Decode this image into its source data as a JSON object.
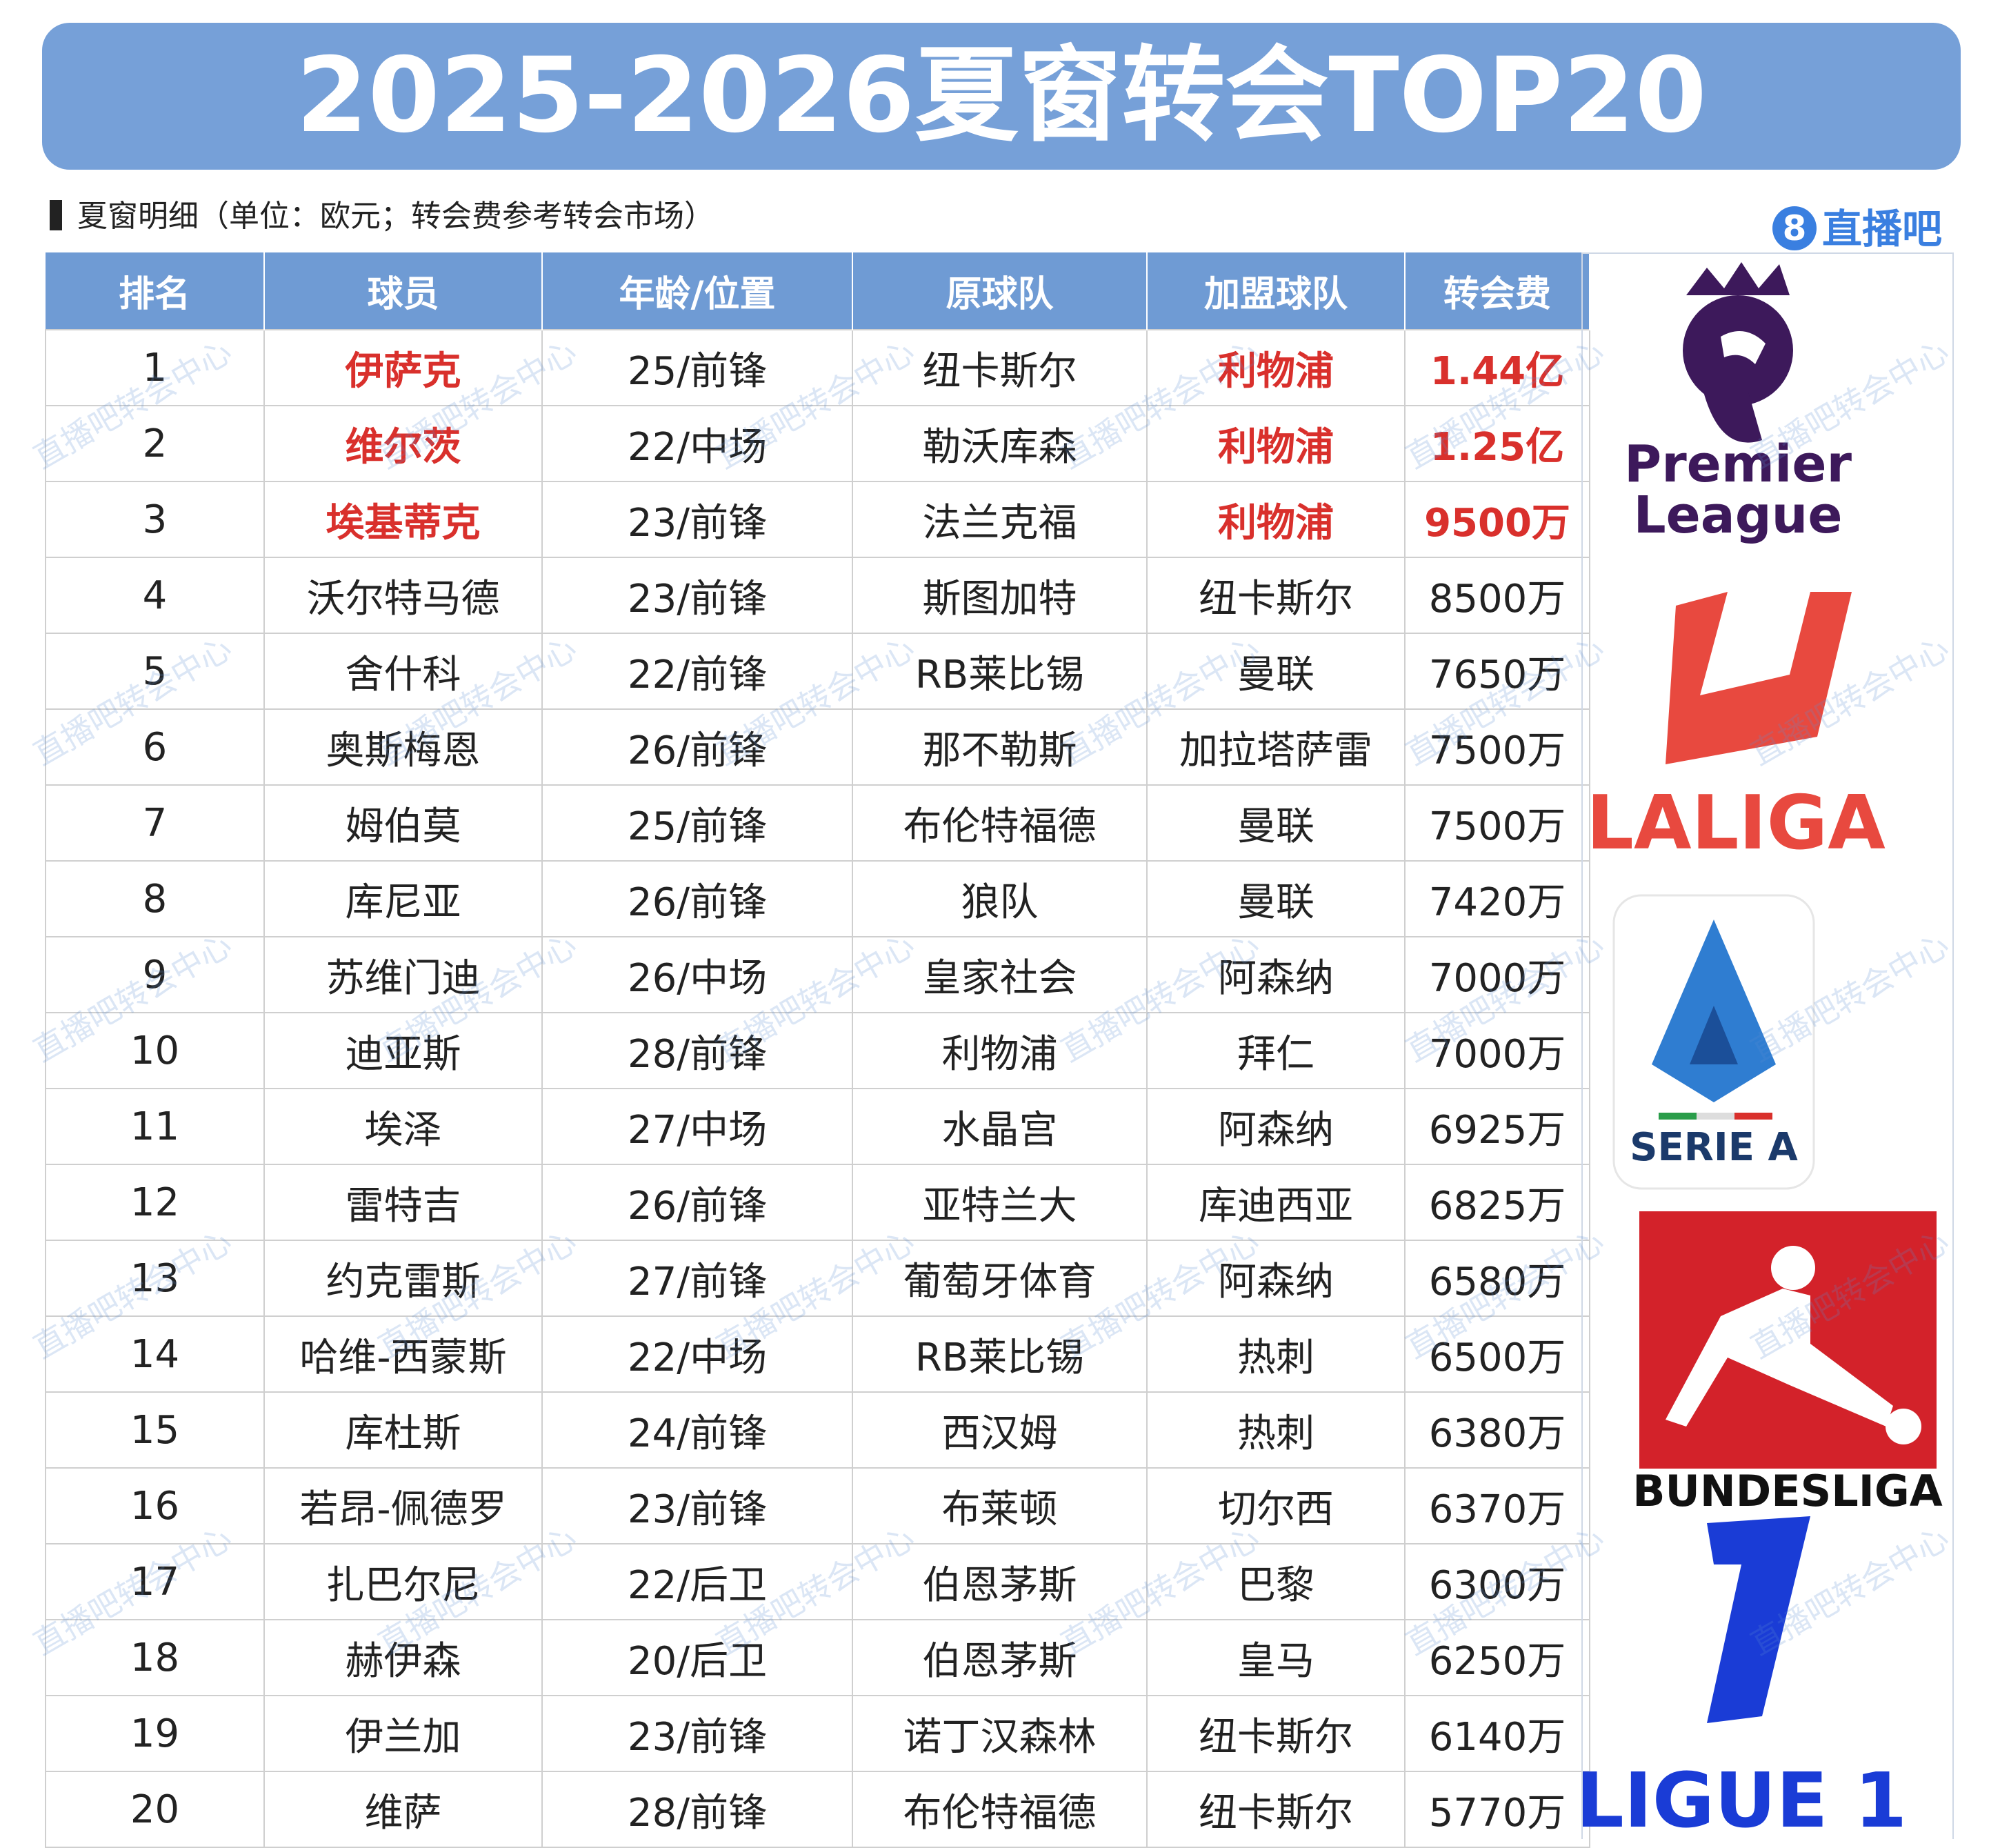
{
  "header": {
    "title": "2025-2026夏窗转会TOP20",
    "subtitle": "夏窗明细（单位：欧元；转会费参考转会市场）",
    "brand_number": "8",
    "brand_name": "直播吧"
  },
  "table": {
    "highlight_color": "#d9302c",
    "columns": [
      "排名",
      "球员",
      "年龄/位置",
      "原球队",
      "加盟球队",
      "转会费"
    ],
    "rows": [
      {
        "cells": [
          "1",
          "伊萨克",
          "25/前锋",
          "纽卡斯尔",
          "利物浦",
          "1.44亿"
        ],
        "highlight": true
      },
      {
        "cells": [
          "2",
          "维尔茨",
          "22/中场",
          "勒沃库森",
          "利物浦",
          "1.25亿"
        ],
        "highlight": true
      },
      {
        "cells": [
          "3",
          "埃基蒂克",
          "23/前锋",
          "法兰克福",
          "利物浦",
          "9500万"
        ],
        "highlight": true
      },
      {
        "cells": [
          "4",
          "沃尔特马德",
          "23/前锋",
          "斯图加特",
          "纽卡斯尔",
          "8500万"
        ]
      },
      {
        "cells": [
          "5",
          "舍什科",
          "22/前锋",
          "RB莱比锡",
          "曼联",
          "7650万"
        ]
      },
      {
        "cells": [
          "6",
          "奥斯梅恩",
          "26/前锋",
          "那不勒斯",
          "加拉塔萨雷",
          "7500万"
        ]
      },
      {
        "cells": [
          "7",
          "姆伯莫",
          "25/前锋",
          "布伦特福德",
          "曼联",
          "7500万"
        ]
      },
      {
        "cells": [
          "8",
          "库尼亚",
          "26/前锋",
          "狼队",
          "曼联",
          "7420万"
        ]
      },
      {
        "cells": [
          "9",
          "苏维门迪",
          "26/中场",
          "皇家社会",
          "阿森纳",
          "7000万"
        ]
      },
      {
        "cells": [
          "10",
          "迪亚斯",
          "28/前锋",
          "利物浦",
          "拜仁",
          "7000万"
        ]
      },
      {
        "cells": [
          "11",
          "埃泽",
          "27/中场",
          "水晶宫",
          "阿森纳",
          "6925万"
        ]
      },
      {
        "cells": [
          "12",
          "雷特吉",
          "26/前锋",
          "亚特兰大",
          "库迪西亚",
          "6825万"
        ]
      },
      {
        "cells": [
          "13",
          "约克雷斯",
          "27/前锋",
          "葡萄牙体育",
          "阿森纳",
          "6580万"
        ]
      },
      {
        "cells": [
          "14",
          "哈维-西蒙斯",
          "22/中场",
          "RB莱比锡",
          "热刺",
          "6500万"
        ]
      },
      {
        "cells": [
          "15",
          "库杜斯",
          "24/前锋",
          "西汉姆",
          "热刺",
          "6380万"
        ]
      },
      {
        "cells": [
          "16",
          "若昂-佩德罗",
          "23/前锋",
          "布莱顿",
          "切尔西",
          "6370万"
        ]
      },
      {
        "cells": [
          "17",
          "扎巴尔尼",
          "22/后卫",
          "伯恩茅斯",
          "巴黎",
          "6300万"
        ]
      },
      {
        "cells": [
          "18",
          "赫伊森",
          "20/后卫",
          "伯恩茅斯",
          "皇马",
          "6250万"
        ]
      },
      {
        "cells": [
          "19",
          "伊兰加",
          "23/前锋",
          "诺丁汉森林",
          "纽卡斯尔",
          "6140万"
        ]
      },
      {
        "cells": [
          "20",
          "维萨",
          "28/前锋",
          "布伦特福德",
          "纽卡斯尔",
          "5770万"
        ]
      }
    ]
  },
  "logos": {
    "premier_league": [
      "Premier",
      "League"
    ],
    "laliga": "LALIGA",
    "serie_a": "SERIE A",
    "bundesliga": "BUNDESLIGA",
    "ligue1": "LIGUE 1"
  },
  "watermark": "直播吧转会中心"
}
